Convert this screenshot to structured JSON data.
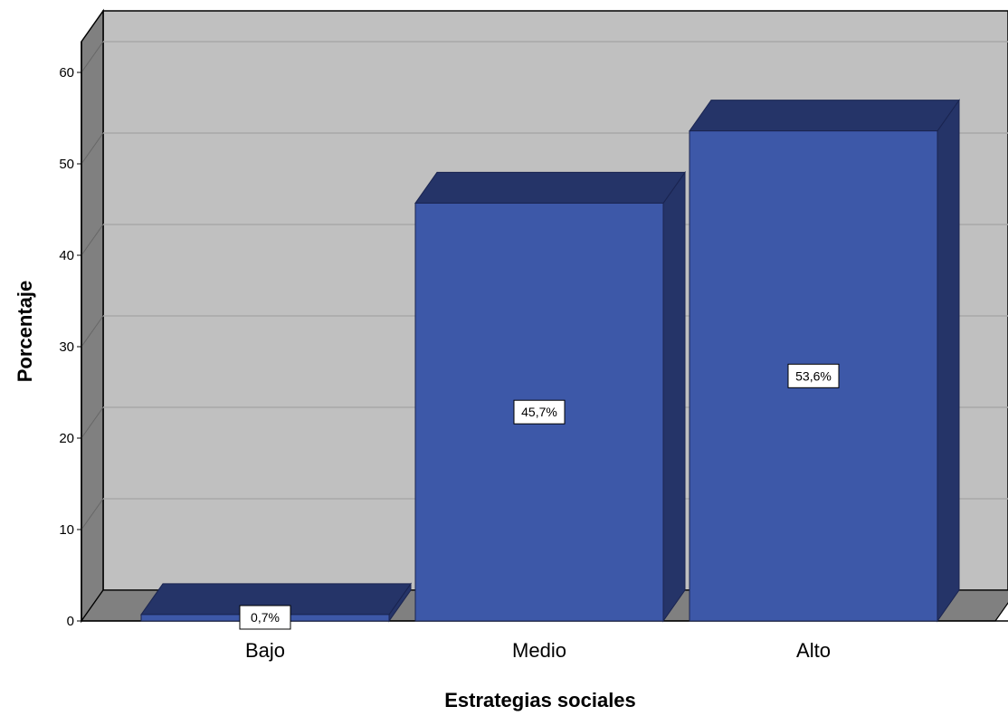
{
  "chart_data": {
    "type": "bar",
    "categories": [
      "Bajo",
      "Medio",
      "Alto"
    ],
    "values": [
      0.7,
      45.7,
      53.6
    ],
    "data_labels": [
      "0,7%",
      "45,7%",
      "53,6%"
    ],
    "xlabel": "Estrategias sociales",
    "ylabel": "Porcentaje",
    "ylim": [
      0,
      65
    ],
    "yticks": [
      0,
      10,
      20,
      30,
      40,
      50,
      60
    ],
    "grid": true,
    "style": "3d",
    "colors": {
      "bar_front": "#3d58a8",
      "bar_top": "#253468",
      "bar_side": "#253468",
      "back_wall": "#c0c0c0",
      "side_wall": "#808080",
      "floor": "#808080",
      "gridline": "#a8a8a8"
    }
  }
}
